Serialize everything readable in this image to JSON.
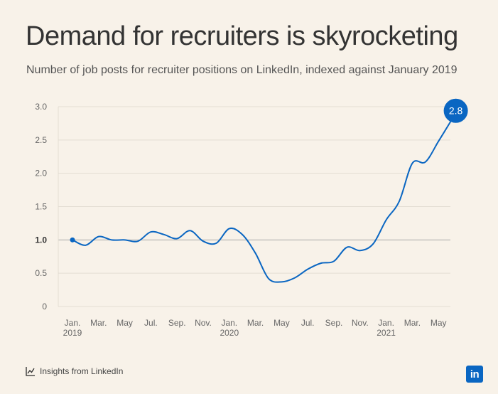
{
  "chart_data": {
    "type": "line",
    "title": "Demand for recruiters is skyrocketing",
    "subtitle": "Number of job posts for recruiter positions on LinkedIn, indexed against January 2019",
    "ylim": [
      0,
      3.0
    ],
    "yticks": [
      "3.0",
      "2.5",
      "2.0",
      "1.5",
      "1.0",
      "0.5",
      "0"
    ],
    "baseline": 1.0,
    "grid": true,
    "xticks": [
      {
        "label": "Jan.",
        "year": "2019"
      },
      {
        "label": "Mar.",
        "year": ""
      },
      {
        "label": "May",
        "year": ""
      },
      {
        "label": "Jul.",
        "year": ""
      },
      {
        "label": "Sep.",
        "year": ""
      },
      {
        "label": "Nov.",
        "year": ""
      },
      {
        "label": "Jan.",
        "year": "2020"
      },
      {
        "label": "Mar.",
        "year": ""
      },
      {
        "label": "May",
        "year": ""
      },
      {
        "label": "Jul.",
        "year": ""
      },
      {
        "label": "Sep.",
        "year": ""
      },
      {
        "label": "Nov.",
        "year": ""
      },
      {
        "label": "Jan.",
        "year": "2021"
      },
      {
        "label": "Mar.",
        "year": ""
      },
      {
        "label": "May",
        "year": ""
      }
    ],
    "series": [
      {
        "x": [
          "2019-01",
          "2019-02",
          "2019-03",
          "2019-04",
          "2019-05",
          "2019-06",
          "2019-07",
          "2019-08",
          "2019-09",
          "2019-10",
          "2019-11",
          "2019-12",
          "2020-01",
          "2020-02",
          "2020-03",
          "2020-04",
          "2020-05",
          "2020-06",
          "2020-07",
          "2020-08",
          "2020-09",
          "2020-10",
          "2020-11",
          "2020-12",
          "2021-01",
          "2021-02",
          "2021-03",
          "2021-04",
          "2021-05",
          "2021-06"
        ],
        "values": [
          1.0,
          0.92,
          1.05,
          1.0,
          1.0,
          0.98,
          1.12,
          1.08,
          1.02,
          1.14,
          0.98,
          0.95,
          1.17,
          1.08,
          0.8,
          0.42,
          0.37,
          0.43,
          0.56,
          0.65,
          0.68,
          0.89,
          0.84,
          0.94,
          1.3,
          1.58,
          2.15,
          2.17,
          2.48,
          2.8
        ]
      }
    ],
    "end_label": "2.8",
    "colors": {
      "line": "#0a66c2",
      "grid": "#e3ddd3",
      "baseline": "#a9a9a9",
      "background": "#f8f2e9"
    }
  },
  "footer": {
    "source": "Insights from LinkedIn",
    "logo_text": "in"
  }
}
